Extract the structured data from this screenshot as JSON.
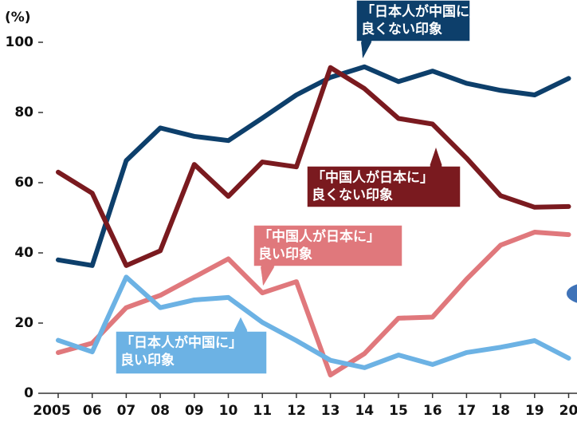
{
  "chart_data": {
    "type": "line",
    "y_unit": "(%)",
    "categories": [
      "2005",
      "06",
      "07",
      "08",
      "09",
      "10",
      "11",
      "12",
      "13",
      "14",
      "15",
      "16",
      "17",
      "18",
      "19",
      "20"
    ],
    "ylim": [
      0,
      100
    ],
    "yticks": [
      0,
      20,
      40,
      60,
      80,
      100
    ],
    "series": [
      {
        "name": [
          "「日本人が中国に」",
          "良くない印象"
        ],
        "color": "#0d3f6b",
        "values": [
          38,
          36.4,
          66.3,
          75.6,
          73.2,
          72,
          78.4,
          85,
          90,
          93,
          88.8,
          91.8,
          88.3,
          86.3,
          85,
          89.7
        ]
      },
      {
        "name": [
          "「中国人が日本に」",
          "良くない印象"
        ],
        "color": "#7a1a1f",
        "values": [
          63,
          57,
          36.4,
          40.6,
          65.2,
          56.1,
          65.9,
          64.5,
          92.8,
          86.8,
          78.3,
          76.7,
          67,
          56.3,
          53,
          53.2
        ]
      },
      {
        "name": [
          "「中国人が日本に」",
          "良い印象"
        ],
        "color": "#e0787c",
        "values": [
          11.6,
          14.3,
          24.4,
          27.9,
          33.1,
          38.3,
          28.6,
          31.8,
          5.2,
          11.3,
          21.4,
          21.7,
          32.5,
          42.2,
          45.9,
          45.2
        ]
      },
      {
        "name": [
          "「日本人が中国に」",
          "良い印象"
        ],
        "color": "#6cb2e4",
        "values": [
          15.1,
          11.8,
          33.1,
          24.4,
          26.6,
          27.3,
          20.2,
          15,
          9.4,
          7.3,
          10.9,
          8.2,
          11.6,
          13.1,
          15,
          10
        ]
      }
    ]
  }
}
